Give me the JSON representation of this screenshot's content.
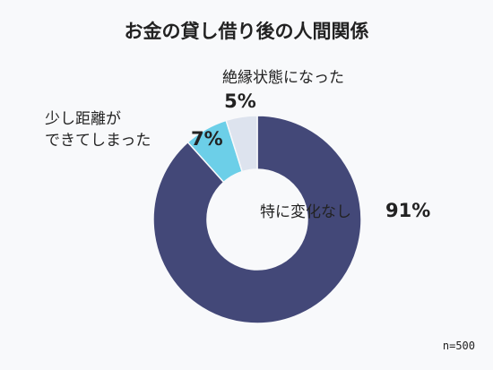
{
  "chart_data": {
    "type": "pie",
    "title": "お金の貸し借り後の人間関係",
    "categories": [
      "特に変化なし",
      "少し距離が\nできてしまった",
      "絶縁状態になった"
    ],
    "values": [
      91,
      7,
      5
    ],
    "value_labels": [
      "91%",
      "7%",
      "5%"
    ],
    "colors": [
      "#434878",
      "#6ccfe8",
      "#dde3ee"
    ],
    "note": "n=500"
  }
}
